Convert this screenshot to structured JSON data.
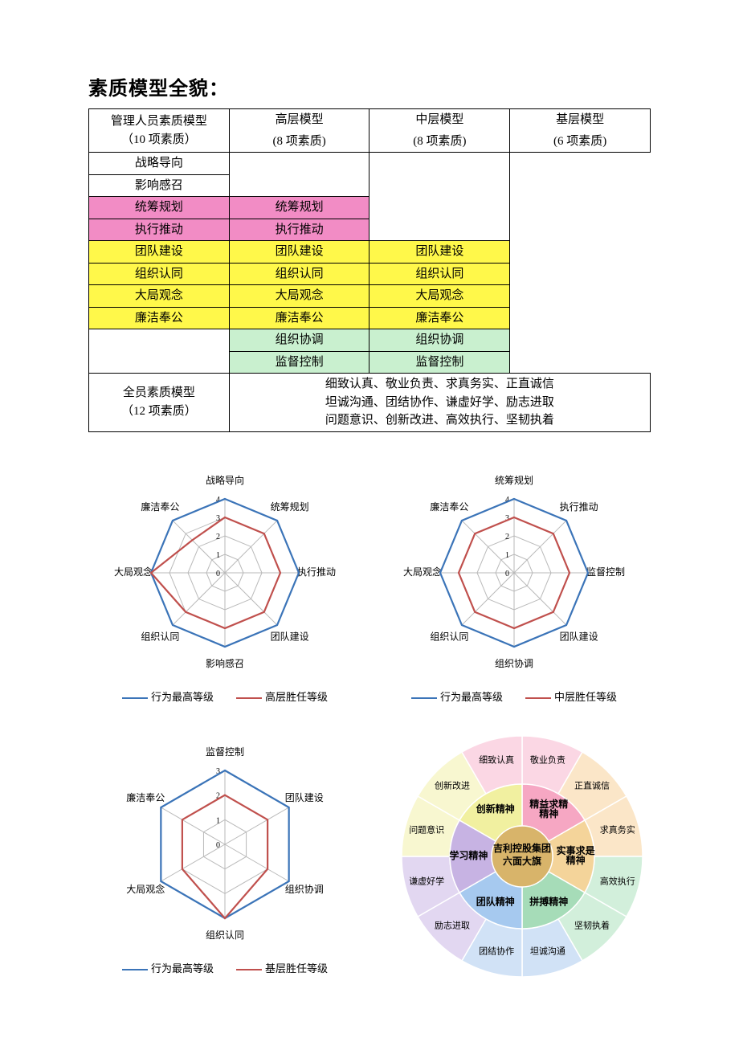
{
  "title": "素质模型全貌：",
  "table": {
    "left1": "管理人员素质模型",
    "left1_sub": "（10 项素质）",
    "left2": "全员素质模型",
    "left2_sub": "（12 项素质）",
    "headers": {
      "c1a": "高层模型",
      "c1b": "(8 项素质)",
      "c2a": "中层模型",
      "c2b": "(8 项素质)",
      "c3a": "基层模型",
      "c3b": "(6 项素质)"
    },
    "rows": [
      {
        "c1": "战略导向",
        "c2": "",
        "c3": "",
        "bg1": "#ffffff",
        "bg2": "",
        "bg3": ""
      },
      {
        "c1": "影响感召",
        "c2": "",
        "c3": "",
        "bg1": "#ffffff",
        "bg2": "",
        "bg3": ""
      },
      {
        "c1": "统筹规划",
        "c2": "统筹规划",
        "c3": "",
        "bg1": "#f28cc5",
        "bg2": "#f28cc5",
        "bg3": ""
      },
      {
        "c1": "执行推动",
        "c2": "执行推动",
        "c3": "",
        "bg1": "#f28cc5",
        "bg2": "#f28cc5",
        "bg3": ""
      },
      {
        "c1": "团队建设",
        "c2": "团队建设",
        "c3": "团队建设",
        "bg1": "#fff84a",
        "bg2": "#fff84a",
        "bg3": "#fff84a"
      },
      {
        "c1": "组织认同",
        "c2": "组织认同",
        "c3": "组织认同",
        "bg1": "#fff84a",
        "bg2": "#fff84a",
        "bg3": "#fff84a"
      },
      {
        "c1": "大局观念",
        "c2": "大局观念",
        "c3": "大局观念",
        "bg1": "#fff84a",
        "bg2": "#fff84a",
        "bg3": "#fff84a"
      },
      {
        "c1": "廉洁奉公",
        "c2": "廉洁奉公",
        "c3": "廉洁奉公",
        "bg1": "#fff84a",
        "bg2": "#fff84a",
        "bg3": "#fff84a"
      },
      {
        "c1": "",
        "c2": "组织协调",
        "c3": "组织协调",
        "bg1": "",
        "bg2": "#c9f0cf",
        "bg3": "#c9f0cf"
      },
      {
        "c1": "",
        "c2": "监督控制",
        "c3": "监督控制",
        "bg1": "",
        "bg2": "#c9f0cf",
        "bg3": "#c9f0cf"
      }
    ],
    "body_lines": [
      "细致认真、敬业负责、求真务实、正直诚信",
      "坦诚沟通、团结协作、谦虚好学、励志进取",
      "问题意识、创新改进、高效执行、坚韧执着"
    ]
  },
  "colors": {
    "series_blue": "#3b74b8",
    "series_red": "#c0504d",
    "grid": "#b9b9b9"
  },
  "radar1": {
    "labels": [
      "战略导向",
      "统筹规划",
      "执行推动",
      "团队建设",
      "影响感召",
      "组织认同",
      "大局观念",
      "廉洁奉公"
    ],
    "rings": 4,
    "series": [
      {
        "name": "行为最高等级",
        "color": "#3b74b8",
        "values": [
          4,
          4,
          4,
          4,
          4,
          4,
          4,
          4
        ]
      },
      {
        "name": "高层胜任等级",
        "color": "#c0504d",
        "values": [
          3,
          3,
          3,
          3,
          3,
          3,
          4,
          2.5
        ]
      }
    ],
    "legend": [
      "行为最高等级",
      "高层胜任等级"
    ]
  },
  "radar2": {
    "labels": [
      "统筹规划",
      "执行推动",
      "监督控制",
      "团队建设",
      "组织协调",
      "组织认同",
      "大局观念",
      "廉洁奉公"
    ],
    "rings": 4,
    "series": [
      {
        "name": "行为最高等级",
        "color": "#3b74b8",
        "values": [
          4,
          4,
          4,
          4,
          4,
          4,
          4,
          4
        ]
      },
      {
        "name": "中层胜任等级",
        "color": "#c0504d",
        "values": [
          3,
          3,
          3,
          3,
          3,
          3,
          3,
          3
        ]
      }
    ],
    "legend": [
      "行为最高等级",
      "中层胜任等级"
    ]
  },
  "radar3": {
    "labels": [
      "监督控制",
      "团队建设",
      "组织协调",
      "组织认同",
      "大局观念",
      "廉洁奉公"
    ],
    "rings": 3,
    "series": [
      {
        "name": "行为最高等级",
        "color": "#3b74b8",
        "values": [
          3,
          3,
          3,
          3,
          3,
          3
        ]
      },
      {
        "name": "基层胜任等级",
        "color": "#c0504d",
        "values": [
          2,
          2,
          2,
          3,
          2,
          2
        ]
      }
    ],
    "legend": [
      "行为最高等级",
      "基层胜任等级"
    ]
  },
  "wheel": {
    "center_line1": "吉利控股集团",
    "center_line2": "六面大旗",
    "center_fill": "#d8b46a",
    "mid": [
      {
        "label": "精益求精\n精神",
        "fill": "#f6a7c3"
      },
      {
        "label": "实事求是\n精神",
        "fill": "#f4d49a"
      },
      {
        "label": "拼搏精神",
        "fill": "#a6dcb8"
      },
      {
        "label": "团队精神",
        "fill": "#a6c9ef"
      },
      {
        "label": "学习精神",
        "fill": "#c7b3e3"
      },
      {
        "label": "创新精神",
        "fill": "#f1f0a0"
      }
    ],
    "outer": [
      {
        "label": "敬业负责",
        "fill": "#fbd7e4"
      },
      {
        "label": "正直诚信",
        "fill": "#fbe6c8"
      },
      {
        "label": "求真务实",
        "fill": "#fbe6c8"
      },
      {
        "label": "高效执行",
        "fill": "#d2efdb"
      },
      {
        "label": "坚韧执着",
        "fill": "#d2efdb"
      },
      {
        "label": "坦诚沟通",
        "fill": "#d1e2f6"
      },
      {
        "label": "团结协作",
        "fill": "#d1e2f6"
      },
      {
        "label": "励志进取",
        "fill": "#e2d7f1"
      },
      {
        "label": "谦虚好学",
        "fill": "#e2d7f1"
      },
      {
        "label": "问题意识",
        "fill": "#f8f7d0"
      },
      {
        "label": "创新改进",
        "fill": "#f8f7d0"
      },
      {
        "label": "细致认真",
        "fill": "#fbd7e4"
      }
    ]
  }
}
